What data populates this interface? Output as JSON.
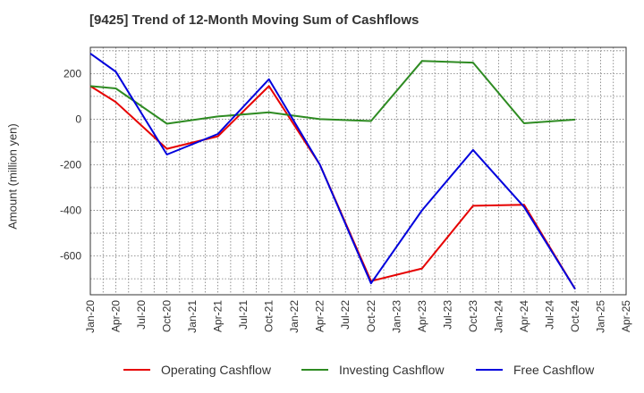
{
  "title": "[9425]  Trend of 12-Month Moving Sum of Cashflows",
  "chart_data": {
    "type": "line",
    "title": "[9425]  Trend of 12-Month Moving Sum of Cashflows",
    "xlabel": "",
    "ylabel": "Amount (million yen)",
    "x_ticks": [
      "Jan-20",
      "Apr-20",
      "Jul-20",
      "Oct-20",
      "Jan-21",
      "Apr-21",
      "Jul-21",
      "Oct-21",
      "Jan-22",
      "Apr-22",
      "Jul-22",
      "Oct-22",
      "Jan-23",
      "Apr-23",
      "Jul-23",
      "Oct-23",
      "Jan-24",
      "Apr-24",
      "Jul-24",
      "Oct-24",
      "Jan-25",
      "Apr-25"
    ],
    "y_ticks": [
      "200",
      "0",
      "-200",
      "-400",
      "-600"
    ],
    "ylim": [
      -770,
      315
    ],
    "grid": true,
    "legend_position": "bottom",
    "series": [
      {
        "name": "Operating Cashflow",
        "color": "#e60000",
        "points": [
          [
            "Jan-20",
            145
          ],
          [
            "Apr-20",
            75
          ],
          [
            "Oct-20",
            -130
          ],
          [
            "Apr-21",
            -75
          ],
          [
            "Oct-21",
            145
          ],
          [
            "Apr-22",
            -200
          ],
          [
            "Oct-22",
            -710
          ],
          [
            "Apr-23",
            -655
          ],
          [
            "Oct-23",
            -380
          ],
          [
            "Apr-24",
            -375
          ],
          [
            "Oct-24",
            -745
          ]
        ]
      },
      {
        "name": "Investing Cashflow",
        "color": "#2e8b22",
        "points": [
          [
            "Jan-20",
            145
          ],
          [
            "Apr-20",
            135
          ],
          [
            "Oct-20",
            -20
          ],
          [
            "Apr-21",
            12
          ],
          [
            "Oct-21",
            30
          ],
          [
            "Apr-22",
            0
          ],
          [
            "Oct-22",
            -8
          ],
          [
            "Apr-23",
            255
          ],
          [
            "Oct-23",
            248
          ],
          [
            "Apr-24",
            -18
          ],
          [
            "Oct-24",
            -2
          ]
        ]
      },
      {
        "name": "Free Cashflow",
        "color": "#0000dd",
        "points": [
          [
            "Jan-20",
            288
          ],
          [
            "Apr-20",
            208
          ],
          [
            "Oct-20",
            -155
          ],
          [
            "Apr-21",
            -65
          ],
          [
            "Oct-21",
            175
          ],
          [
            "Apr-22",
            -200
          ],
          [
            "Oct-22",
            -720
          ],
          [
            "Apr-23",
            -400
          ],
          [
            "Oct-23",
            -135
          ],
          [
            "Apr-24",
            -385
          ],
          [
            "Oct-24",
            -745
          ]
        ]
      }
    ]
  }
}
